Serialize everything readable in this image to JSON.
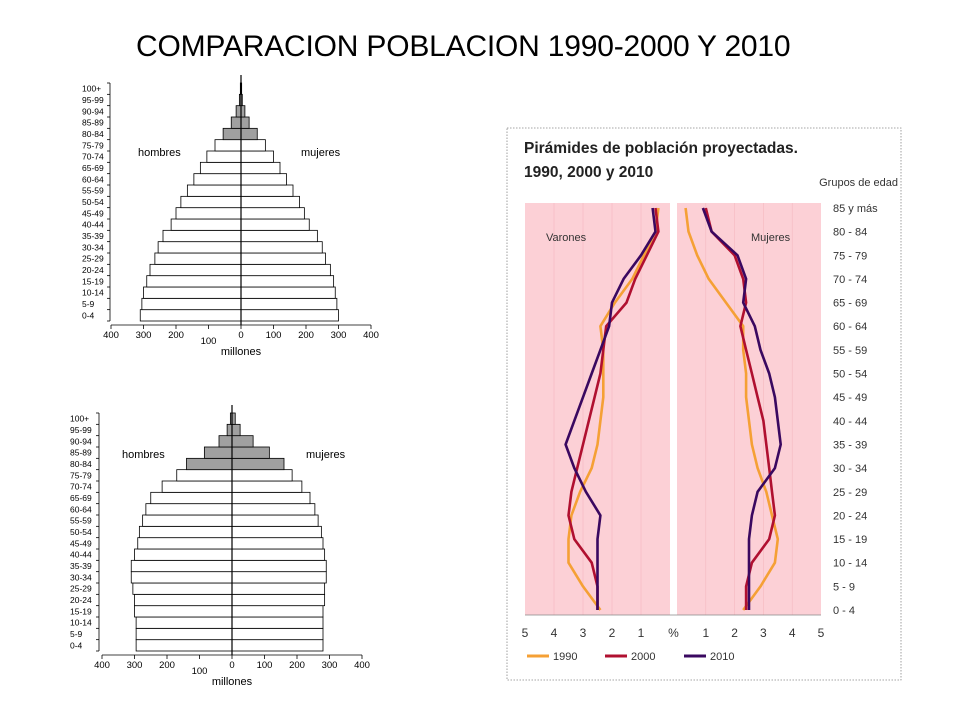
{
  "title": "COMPARACION POBLACION  1990-2000 Y 2010",
  "chart_data": [
    {
      "type": "bar",
      "subtype": "population-pyramid",
      "title": "",
      "categories": [
        "0-4",
        "5-9",
        "10-14",
        "15-19",
        "20-24",
        "25-29",
        "30-34",
        "35-39",
        "40-44",
        "45-49",
        "50-54",
        "55-59",
        "60-64",
        "65-69",
        "70-74",
        "75-79",
        "80-84",
        "85-89",
        "90-94",
        "95-99",
        "100+"
      ],
      "left_label": "hombres",
      "right_label": "mujeres",
      "xlabel": "millones",
      "xticks": [
        "400",
        "300",
        "200",
        "100",
        "0",
        "100",
        "200",
        "300",
        "400"
      ],
      "xlim": [
        -400,
        400
      ],
      "series": [
        {
          "name": "hombres",
          "values": [
            310,
            305,
            300,
            290,
            280,
            265,
            255,
            240,
            215,
            200,
            185,
            165,
            145,
            125,
            105,
            80,
            55,
            30,
            15,
            5,
            2
          ]
        },
        {
          "name": "mujeres",
          "values": [
            300,
            295,
            290,
            285,
            275,
            260,
            250,
            235,
            210,
            195,
            180,
            160,
            140,
            120,
            100,
            75,
            50,
            25,
            12,
            4,
            2
          ]
        }
      ],
      "shaded_from": "80-84"
    },
    {
      "type": "bar",
      "subtype": "population-pyramid",
      "title": "",
      "categories": [
        "0-4",
        "5-9",
        "10-14",
        "15-19",
        "20-24",
        "25-29",
        "30-34",
        "35-39",
        "40-44",
        "45-49",
        "50-54",
        "55-59",
        "60-64",
        "65-69",
        "70-74",
        "75-79",
        "80-84",
        "85-89",
        "90-94",
        "95-99",
        "100+"
      ],
      "left_label": "hombres",
      "right_label": "mujeres",
      "xlabel": "millones",
      "xticks": [
        "400",
        "300",
        "200",
        "100",
        "0",
        "100",
        "200",
        "300",
        "400"
      ],
      "xlim": [
        -400,
        400
      ],
      "series": [
        {
          "name": "hombres",
          "values": [
            295,
            295,
            295,
            300,
            300,
            305,
            310,
            310,
            300,
            290,
            285,
            275,
            265,
            250,
            215,
            170,
            140,
            85,
            40,
            15,
            5
          ]
        },
        {
          "name": "mujeres",
          "values": [
            280,
            280,
            280,
            280,
            285,
            285,
            290,
            290,
            285,
            280,
            275,
            265,
            255,
            240,
            215,
            185,
            160,
            115,
            65,
            25,
            10
          ]
        }
      ],
      "shaded_from": "80-84"
    },
    {
      "type": "line",
      "title": "Pirámides de población proyectadas.",
      "subtitle": "1990, 2000 y 2010",
      "categories_label": "Grupos de edad",
      "categories": [
        "0 - 4",
        "5 - 9",
        "10 - 14",
        "15 - 19",
        "20 - 24",
        "25 - 29",
        "30 - 34",
        "35 - 39",
        "40 - 44",
        "45 - 49",
        "50 - 54",
        "55 - 59",
        "60 - 64",
        "65 - 69",
        "70 - 74",
        "75 - 79",
        "80 - 84",
        "85 y más"
      ],
      "left_label": "Varones",
      "right_label": "Mujeres",
      "xlabel": "%",
      "xticks": [
        "5",
        "4",
        "3",
        "2",
        "1",
        "%",
        "1",
        "2",
        "3",
        "4",
        "5"
      ],
      "xlim": [
        -5,
        5
      ],
      "legend": "bottom",
      "series": [
        {
          "name": "1990",
          "color": "#f5a035",
          "varones": [
            2.4,
            3.0,
            3.5,
            3.5,
            3.4,
            3.1,
            2.7,
            2.5,
            2.4,
            2.3,
            2.3,
            2.3,
            2.4,
            1.9,
            1.3,
            0.9,
            0.5,
            0.4
          ],
          "mujeres": [
            2.3,
            2.9,
            3.4,
            3.5,
            3.3,
            3.1,
            2.8,
            2.6,
            2.5,
            2.4,
            2.4,
            2.3,
            2.3,
            1.7,
            1.1,
            0.7,
            0.4,
            0.3
          ]
        },
        {
          "name": "2000",
          "color": "#b01030",
          "varones": [
            2.5,
            2.5,
            2.7,
            3.3,
            3.5,
            3.4,
            3.2,
            3.0,
            2.8,
            2.6,
            2.4,
            2.3,
            2.2,
            1.5,
            1.2,
            0.8,
            0.4,
            0.5
          ],
          "mujeres": [
            2.4,
            2.4,
            2.6,
            3.2,
            3.4,
            3.3,
            3.2,
            3.1,
            3.0,
            2.8,
            2.6,
            2.4,
            2.2,
            2.4,
            2.3,
            2.0,
            1.2,
            1.0
          ]
        },
        {
          "name": "2010",
          "color": "#3a0860",
          "varones": [
            2.5,
            2.5,
            2.5,
            2.5,
            2.4,
            2.9,
            3.3,
            3.6,
            3.3,
            3.0,
            2.7,
            2.4,
            2.1,
            2.0,
            1.6,
            1.0,
            0.5,
            0.6
          ],
          "mujeres": [
            2.5,
            2.5,
            2.5,
            2.5,
            2.6,
            2.8,
            3.4,
            3.6,
            3.5,
            3.4,
            3.2,
            2.9,
            2.7,
            2.3,
            2.4,
            2.1,
            1.2,
            0.9
          ]
        }
      ]
    }
  ]
}
